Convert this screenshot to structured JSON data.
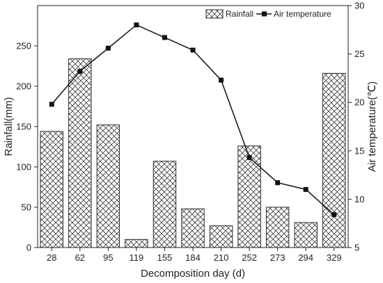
{
  "chart_data": {
    "type": "bar",
    "categories": [
      "28",
      "62",
      "95",
      "119",
      "155",
      "184",
      "210",
      "252",
      "273",
      "294",
      "329"
    ],
    "series": [
      {
        "name": "Rainfall",
        "type": "bar",
        "axis": "left",
        "values": [
          144,
          234,
          152,
          10,
          107,
          48,
          27,
          126,
          50,
          31,
          216
        ]
      },
      {
        "name": "Air temperature",
        "type": "line",
        "axis": "right",
        "values": [
          19.8,
          23.2,
          25.6,
          28.0,
          26.7,
          25.4,
          22.3,
          14.3,
          11.7,
          11.0,
          8.4
        ]
      }
    ],
    "xlabel": "Decomposition day (d)",
    "ylabel": "Rainfall(mm)",
    "y2label": "Air temperature(℃)",
    "ylim": [
      0,
      300
    ],
    "yticks": [
      "0",
      "50",
      "100",
      "150",
      "200",
      "250"
    ],
    "y2lim": [
      5,
      30
    ],
    "y2ticks": [
      "5",
      "10",
      "15",
      "20",
      "25",
      "30"
    ],
    "grid": false,
    "legend_position": "top-right",
    "colors": {
      "bar_stroke": "#2b2b2b",
      "hatch": "#3a3a3a",
      "line": "#111111",
      "marker": "#111111"
    }
  }
}
